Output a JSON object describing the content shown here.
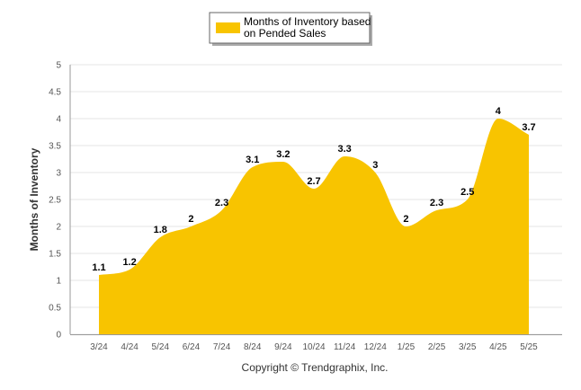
{
  "chart_data": {
    "type": "area",
    "categories": [
      "3/24",
      "4/24",
      "5/24",
      "6/24",
      "7/24",
      "8/24",
      "9/24",
      "10/24",
      "11/24",
      "12/24",
      "1/25",
      "2/25",
      "3/25",
      "4/25",
      "5/25"
    ],
    "series": [
      {
        "name": "Months of Inventory based on Pended Sales",
        "legend_lines": [
          "Months of Inventory based",
          "on Pended Sales"
        ],
        "values": [
          1.1,
          1.2,
          1.8,
          2,
          2.3,
          3.1,
          3.2,
          2.7,
          3.3,
          3,
          2,
          2.3,
          2.5,
          4,
          3.7
        ],
        "color": "#F8C400"
      }
    ],
    "ylabel": "Months of Inventory",
    "ylim": [
      0,
      5
    ],
    "yticks": [
      0,
      0.5,
      1,
      1.5,
      2,
      2.5,
      3,
      3.5,
      4,
      4.5,
      5
    ],
    "ytick_labels": [
      "0",
      "0.5",
      "1",
      "1.5",
      "2",
      "2.5",
      "3",
      "3.5",
      "4",
      "4.5",
      "5"
    ],
    "grid": true,
    "legend_position": "top-center",
    "footer": "Copyright © Trendgraphix, Inc."
  }
}
